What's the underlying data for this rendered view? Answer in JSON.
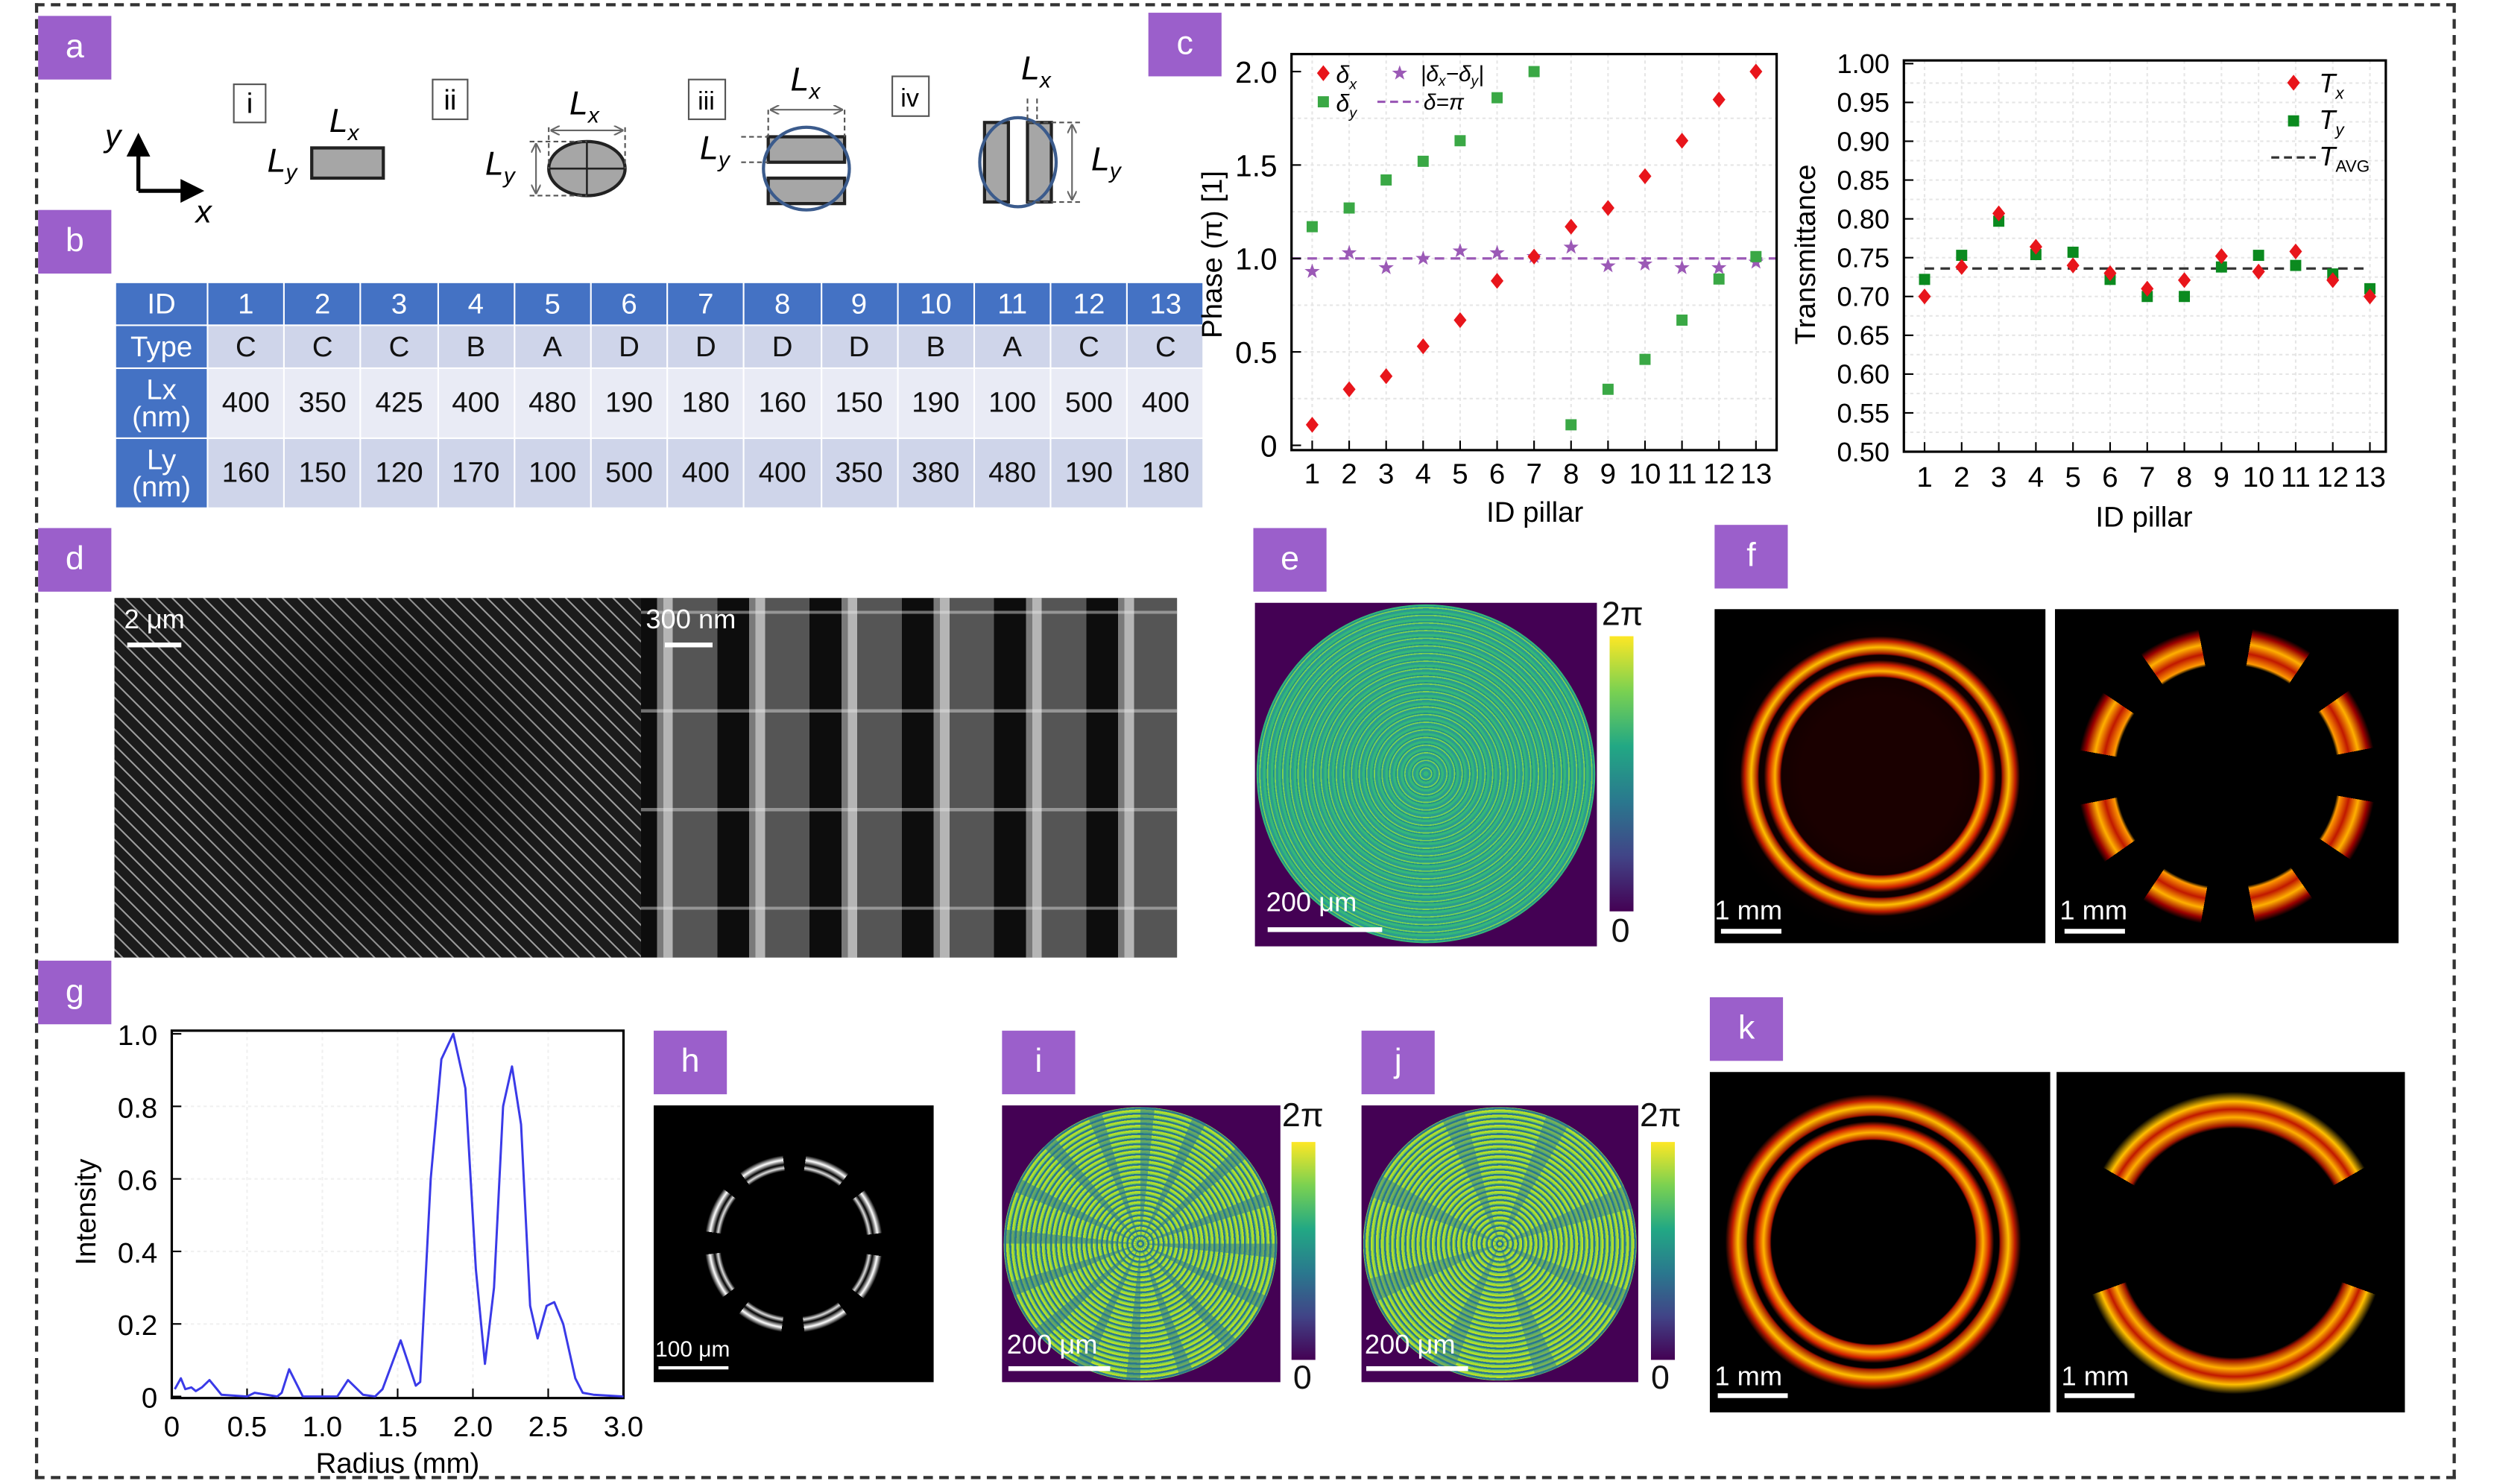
{
  "panel_labels": {
    "a": "a",
    "b": "b",
    "c": "c",
    "d": "d",
    "e": "e",
    "f": "f",
    "g": "g",
    "h": "h",
    "i": "i",
    "j": "j",
    "k": "k"
  },
  "panel_a": {
    "axis_y": "y",
    "axis_x": "x",
    "types": [
      {
        "roman": "i",
        "lx": "L",
        "lx_sub": "x",
        "ly": "L",
        "ly_sub": "y"
      },
      {
        "roman": "ii",
        "lx": "L",
        "lx_sub": "x",
        "ly": "L",
        "ly_sub": "y"
      },
      {
        "roman": "iii",
        "lx": "L",
        "lx_sub": "x",
        "ly": "L",
        "ly_sub": "y"
      },
      {
        "roman": "iv",
        "lx": "L",
        "lx_sub": "x",
        "ly": "L",
        "ly_sub": "y"
      }
    ]
  },
  "table": {
    "row_headers": [
      "ID",
      "Type",
      "Lx (nm)",
      "Ly (nm)"
    ],
    "ids": [
      "1",
      "2",
      "3",
      "4",
      "5",
      "6",
      "7",
      "8",
      "9",
      "10",
      "11",
      "12",
      "13"
    ],
    "type": [
      "C",
      "C",
      "C",
      "B",
      "A",
      "D",
      "D",
      "D",
      "D",
      "B",
      "A",
      "C",
      "C"
    ],
    "lx": [
      "400",
      "350",
      "425",
      "400",
      "480",
      "190",
      "180",
      "160",
      "150",
      "190",
      "100",
      "500",
      "400"
    ],
    "ly": [
      "160",
      "150",
      "120",
      "170",
      "100",
      "500",
      "400",
      "400",
      "350",
      "380",
      "480",
      "190",
      "180"
    ]
  },
  "colors": {
    "label": "#9b5fcb",
    "table_header": "#4472c4",
    "red": "#e8151b",
    "green": "#3aa845",
    "dark_green": "#0b8a1f",
    "purple": "#9b59b6",
    "blue_line": "#3a3ae8"
  },
  "chart_data": [
    {
      "type": "scatter",
      "xlabel": "ID pillar",
      "ylabel": "Phase (π) [1]",
      "x": [
        1,
        2,
        3,
        4,
        5,
        6,
        7,
        8,
        9,
        10,
        11,
        12,
        13
      ],
      "xticks": [
        "1",
        "2",
        "3",
        "4",
        "5",
        "6",
        "7",
        "8",
        "9",
        "10",
        "11",
        "12",
        "13"
      ],
      "yticks": [
        "0",
        "0.5",
        "1.0",
        "1.5",
        "2.0"
      ],
      "ylim": [
        0,
        2.0
      ],
      "grid": true,
      "legend": "top-left",
      "series": [
        {
          "name": "δx",
          "marker": "diamond",
          "values": [
            0.11,
            0.3,
            0.37,
            0.53,
            0.67,
            0.88,
            1.01,
            1.17,
            1.27,
            1.44,
            1.63,
            1.85,
            2.0
          ]
        },
        {
          "name": "δy",
          "marker": "square",
          "values": [
            1.17,
            1.27,
            1.42,
            1.52,
            1.63,
            1.86,
            2.0,
            0.11,
            0.3,
            0.46,
            0.67,
            0.89,
            1.01
          ]
        },
        {
          "name": "|δx−δy|",
          "marker": "star",
          "values": [
            0.93,
            1.03,
            0.95,
            1.0,
            1.04,
            1.03,
            1.01,
            1.06,
            0.96,
            0.97,
            0.95,
            0.95,
            0.98
          ]
        },
        {
          "name": "δ=π",
          "style": "dashed",
          "value": 1.0
        }
      ]
    },
    {
      "type": "scatter",
      "xlabel": "ID pillar",
      "ylabel": "Transmittance",
      "x": [
        1,
        2,
        3,
        4,
        5,
        6,
        7,
        8,
        9,
        10,
        11,
        12,
        13
      ],
      "xticks": [
        "1",
        "2",
        "3",
        "4",
        "5",
        "6",
        "7",
        "8",
        "9",
        "10",
        "11",
        "12",
        "13"
      ],
      "yticks": [
        "0.50",
        "0.55",
        "0.60",
        "0.65",
        "0.70",
        "0.75",
        "0.80",
        "0.85",
        "0.90",
        "0.95",
        "1.00"
      ],
      "ylim": [
        0.5,
        1.0
      ],
      "grid": true,
      "legend": "top-right",
      "series": [
        {
          "name": "Tx",
          "marker": "diamond",
          "values": [
            0.7,
            0.738,
            0.807,
            0.764,
            0.74,
            0.73,
            0.71,
            0.721,
            0.752,
            0.732,
            0.758,
            0.721,
            0.7
          ]
        },
        {
          "name": "Ty",
          "marker": "square",
          "values": [
            0.722,
            0.753,
            0.797,
            0.754,
            0.757,
            0.722,
            0.7,
            0.7,
            0.738,
            0.753,
            0.74,
            0.729,
            0.71
          ]
        },
        {
          "name": "TAVG",
          "style": "dashed",
          "value": 0.736
        }
      ]
    },
    {
      "type": "line",
      "xlabel": "Radius (mm)",
      "ylabel": "Intensity",
      "xticks": [
        "0",
        "0.5",
        "1.0",
        "1.5",
        "2.0",
        "2.5",
        "3.0"
      ],
      "yticks": [
        "0",
        "0.2",
        "0.4",
        "0.6",
        "0.8",
        "1.0"
      ],
      "xlim": [
        0,
        3.0
      ],
      "ylim": [
        0,
        1.0
      ],
      "grid": true,
      "x": [
        0.02,
        0.06,
        0.09,
        0.13,
        0.16,
        0.2,
        0.25,
        0.3,
        0.33,
        0.5,
        0.55,
        0.63,
        0.7,
        0.73,
        0.78,
        0.87,
        1.0,
        1.1,
        1.17,
        1.27,
        1.35,
        1.4,
        1.52,
        1.62,
        1.65,
        1.72,
        1.79,
        1.87,
        1.95,
        2.02,
        2.08,
        2.14,
        2.2,
        2.26,
        2.32,
        2.38,
        2.43,
        2.49,
        2.54,
        2.6,
        2.68,
        2.73,
        2.8,
        3.0
      ],
      "y": [
        0.02,
        0.05,
        0.02,
        0.025,
        0.015,
        0.025,
        0.045,
        0.02,
        0.005,
        0,
        0.01,
        0.005,
        0,
        0.01,
        0.075,
        0,
        0,
        0,
        0.045,
        0.005,
        0,
        0.02,
        0.155,
        0.03,
        0.04,
        0.6,
        0.93,
        1.0,
        0.85,
        0.35,
        0.09,
        0.3,
        0.8,
        0.91,
        0.75,
        0.25,
        0.16,
        0.25,
        0.26,
        0.2,
        0.05,
        0.01,
        0.005,
        0
      ]
    }
  ],
  "scale_bars": {
    "d_left": "2 μm",
    "d_right": "300 nm",
    "e": "200 μm",
    "f_left": "1 mm",
    "f_right": "1 mm",
    "h": "100 μm",
    "i": "200 μm",
    "j": "200 μm",
    "k_left": "1 mm",
    "k_right": "1 mm"
  },
  "colorbars": {
    "top": "2π",
    "bottom": "0"
  }
}
